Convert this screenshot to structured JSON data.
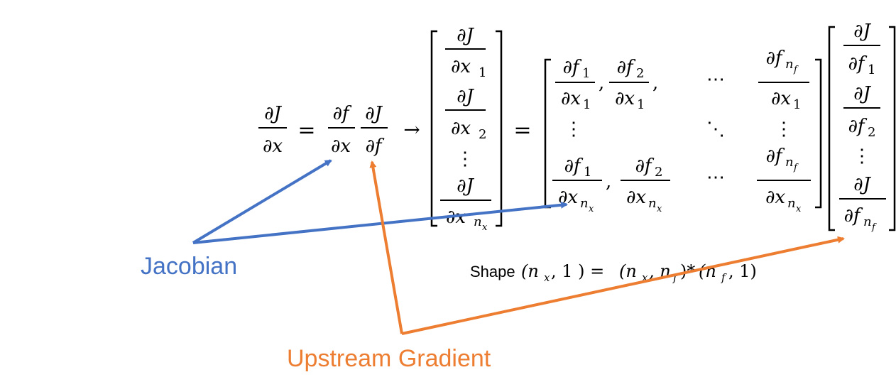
{
  "lhs": {
    "frac_main": {
      "num": "∂J",
      "den": "∂x"
    },
    "equals": "=",
    "frac_jac": {
      "num": "∂f",
      "den": "∂x"
    },
    "frac_grad": {
      "num": "∂J",
      "den": "∂f"
    },
    "arrow": "→"
  },
  "result_vector": {
    "entry_1": {
      "num": "∂J",
      "den": "∂x",
      "sub": "1"
    },
    "entry_2": {
      "num": "∂J",
      "den": "∂x",
      "sub": "2"
    },
    "vdots": "⋮",
    "entry_n": {
      "num": "∂J",
      "den": "∂x",
      "sub": "n",
      "subsub": "x"
    }
  },
  "equals_2": "=",
  "jacobian_matrix": {
    "r1c1": {
      "num": "∂f",
      "num_sub": "1",
      "den": "∂x",
      "den_sub": "1"
    },
    "r1c2": {
      "num": "∂f",
      "num_sub": "2",
      "den": "∂x",
      "den_sub": "1"
    },
    "r1c_dots": "⋯",
    "r1cn": {
      "num": "∂f",
      "num_sub": "n",
      "num_subsub": "f",
      "den": "∂x",
      "den_sub": "1"
    },
    "r2c1": "⋮",
    "r2c_ddots": "⋱",
    "r2cn": "⋮",
    "r3c1": {
      "num": "∂f",
      "num_sub": "1",
      "den": "∂x",
      "den_sub": "n",
      "den_subsub": "x"
    },
    "r3c2": {
      "num": "∂f",
      "num_sub": "2",
      "den": "∂x",
      "den_sub": "n",
      "den_subsub": "x"
    },
    "r3c_dots": "⋯",
    "r3cn": {
      "num": "∂f",
      "num_sub": "n",
      "num_subsub": "f",
      "den": "∂x",
      "den_sub": "n",
      "den_subsub": "x"
    },
    "comma": ","
  },
  "gradient_vector": {
    "entry_1": {
      "num": "∂J",
      "den": "∂f",
      "sub": "1"
    },
    "entry_2": {
      "num": "∂J",
      "den": "∂f",
      "sub": "2"
    },
    "vdots": "⋮",
    "entry_n": {
      "num": "∂J",
      "den": "∂f",
      "sub": "n",
      "subsub": "f"
    }
  },
  "shape_line": {
    "word": "Shape",
    "lhs": "(n",
    "lhs_sub": "x",
    "lhs_rest": ", 1 ) =",
    "m1_open": "(n",
    "m1_sub1": "x",
    "m1_mid": ", n",
    "m1_sub2": "f",
    "m1_close": ")*",
    "m2_open": "(n",
    "m2_sub": "f",
    "m2_close": ", 1)"
  },
  "labels": {
    "jacobian": "Jacobian",
    "upstream": "Upstream Gradient"
  },
  "colors": {
    "jacobian": "#4472c4",
    "upstream": "#ed7d31",
    "text": "#000000"
  }
}
